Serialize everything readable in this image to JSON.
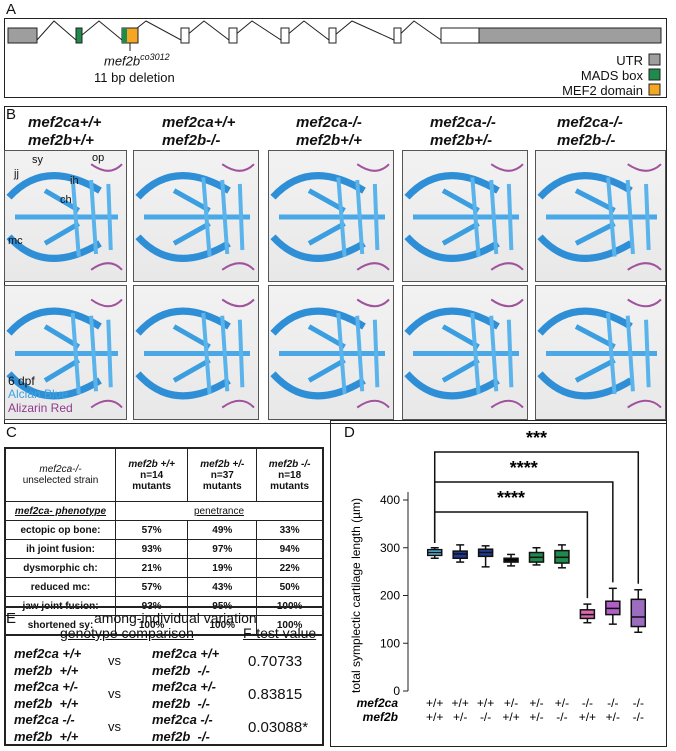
{
  "panelA": {
    "label": "A",
    "mutation_label": "mef2b",
    "mutation_sup": "co3012",
    "mutation_desc": "11 bp deletion",
    "legend": [
      {
        "text": "UTR",
        "color": "#9e9e9e"
      },
      {
        "text": "MADS box",
        "color": "#1f8a4c"
      },
      {
        "text": "MEF2 domain",
        "color": "#f5a623"
      }
    ]
  },
  "panelB": {
    "label": "B",
    "columns": [
      {
        "line1": "mef2ca+/+",
        "line2": "mef2b+/+"
      },
      {
        "line1": "mef2ca+/+",
        "line2": "mef2b-/-"
      },
      {
        "line1": "mef2ca-/-",
        "line2": "mef2b+/+"
      },
      {
        "line1": "mef2ca-/-",
        "line2": "mef2b+/-"
      },
      {
        "line1": "mef2ca-/-",
        "line2": "mef2b-/-"
      }
    ],
    "structure_labels": [
      "sy",
      "op",
      "jj",
      "ih",
      "ch",
      "mc"
    ],
    "stage": "6 dpf",
    "stain1": "Alcian Blue",
    "stain1_color": "#3ba3e0",
    "stain2": "Alizarin Red",
    "stain2_color": "#8e3a8c"
  },
  "panelC": {
    "label": "C",
    "corner_line1": "mef2ca-/-",
    "corner_line2": "unselected strain",
    "headers": [
      {
        "g": "mef2b +/+",
        "n": "n=14",
        "m": "mutants"
      },
      {
        "g": "mef2b +/-",
        "n": "n=37",
        "m": "mutants"
      },
      {
        "g": "mef2b -/-",
        "n": "n=18",
        "m": "mutants"
      }
    ],
    "phenotype_label": "mef2ca- phenotype",
    "penetrance_label": "penetrance",
    "rows": [
      {
        "name": "ectopic op bone:",
        "v": [
          "57%",
          "49%",
          "33%"
        ]
      },
      {
        "name": "ih joint fusion:",
        "v": [
          "93%",
          "97%",
          "94%"
        ]
      },
      {
        "name": "dysmorphic ch:",
        "v": [
          "21%",
          "19%",
          "22%"
        ]
      },
      {
        "name": "reduced mc:",
        "v": [
          "57%",
          "43%",
          "50%"
        ]
      },
      {
        "name": "jaw joint fusion:",
        "v": [
          "93%",
          "95%",
          "100%"
        ]
      },
      {
        "name": "shortened sy:",
        "v": [
          "100%",
          "100%",
          "100%"
        ]
      }
    ]
  },
  "panelE": {
    "label": "E",
    "title": "among-individual variation",
    "col1": "genotype comparison",
    "col2": "F-test value",
    "vs": "vs",
    "rows": [
      {
        "a1": "mef2ca +/+",
        "a2": "mef2b  +/+",
        "b1": "mef2ca +/+",
        "b2": "mef2b  -/-",
        "f": "0.70733"
      },
      {
        "a1": "mef2ca +/-",
        "a2": "mef2b  +/+",
        "b1": "mef2ca +/-",
        "b2": "mef2b  -/-",
        "f": "0.83815"
      },
      {
        "a1": "mef2ca -/-",
        "a2": "mef2b  +/+",
        "b1": "mef2ca -/-",
        "b2": "mef2b  -/-",
        "f": "0.03088*"
      }
    ]
  },
  "panelD": {
    "label": "D"
  },
  "chart_data": {
    "type": "box",
    "ylabel": "total symplectic cartilage length (µm)",
    "ylim": [
      0,
      400
    ],
    "yticks": [
      0,
      100,
      200,
      300,
      400
    ],
    "row_labels": [
      "mef2ca",
      "mef2b"
    ],
    "mef2ca": [
      "+/+",
      "+/+",
      "+/+",
      "+/-",
      "+/-",
      "+/-",
      "-/-",
      "-/-",
      "-/-"
    ],
    "mef2b": [
      "+/+",
      "+/-",
      "-/-",
      "+/+",
      "+/-",
      "-/-",
      "+/+",
      "+/-",
      "-/-"
    ],
    "boxes": [
      {
        "min": 278,
        "q1": 284,
        "median": 290,
        "q3": 296,
        "max": 300,
        "color": "#5bc0eb"
      },
      {
        "min": 270,
        "q1": 278,
        "median": 287,
        "q3": 293,
        "max": 306,
        "color": "#1f3a93"
      },
      {
        "min": 260,
        "q1": 282,
        "median": 290,
        "q3": 297,
        "max": 304,
        "color": "#1f3a93"
      },
      {
        "min": 262,
        "q1": 270,
        "median": 272,
        "q3": 278,
        "max": 286,
        "color": "#000000"
      },
      {
        "min": 264,
        "q1": 270,
        "median": 280,
        "q3": 290,
        "max": 300,
        "color": "#1f8a4c"
      },
      {
        "min": 258,
        "q1": 268,
        "median": 280,
        "q3": 294,
        "max": 306,
        "color": "#1f8a4c"
      },
      {
        "min": 143,
        "q1": 152,
        "median": 160,
        "q3": 170,
        "max": 182,
        "color": "#d96ab0"
      },
      {
        "min": 140,
        "q1": 160,
        "median": 173,
        "q3": 188,
        "max": 215,
        "color": "#b05fc6"
      },
      {
        "min": 123,
        "q1": 135,
        "median": 155,
        "q3": 192,
        "max": 212,
        "color": "#9b6cc0"
      }
    ],
    "significance": [
      {
        "from": 1,
        "to": 9,
        "text": "***"
      },
      {
        "from": 1,
        "to": 8,
        "text": "****"
      },
      {
        "from": 1,
        "to": 7,
        "text": "****"
      }
    ]
  }
}
